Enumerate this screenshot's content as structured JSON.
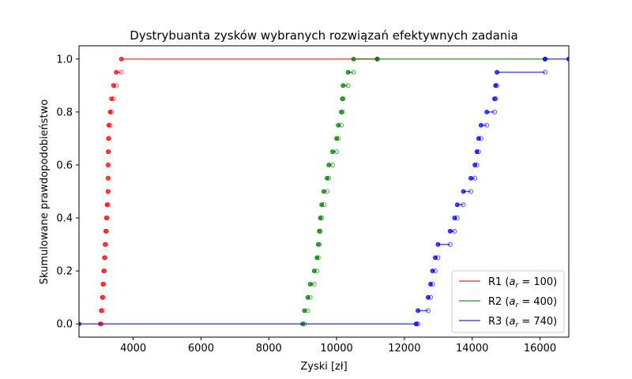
{
  "chart_data": {
    "type": "step",
    "title": "Dystrybuanta zysków wybranych rozwiązań efektywnych zadania",
    "xlabel": "Zyski [zł]",
    "ylabel": "Skumulowane prawdopodobieństwo",
    "xlim": [
      2400,
      16850
    ],
    "ylim": [
      -0.05,
      1.05
    ],
    "xticks": [
      4000,
      6000,
      8000,
      10000,
      12000,
      14000,
      16000
    ],
    "yticks": [
      0.0,
      0.2,
      0.4,
      0.6,
      0.8,
      1.0
    ],
    "xtick_labels": [
      "4000",
      "6000",
      "8000",
      "10000",
      "12000",
      "14000",
      "16000"
    ],
    "ytick_labels": [
      "0.0",
      "0.2",
      "0.4",
      "0.6",
      "0.8",
      "1.0"
    ],
    "legend_position": "lower-right",
    "grid": false,
    "series": [
      {
        "name_main": "R1 (",
        "name_math": "a",
        "name_sub": "r",
        "name_rest": " = 100)",
        "color": "#ff0000",
        "x": [
          3030,
          3060,
          3090,
          3110,
          3130,
          3150,
          3170,
          3190,
          3210,
          3230,
          3260,
          3260,
          3260,
          3260,
          3270,
          3280,
          3320,
          3360,
          3420,
          3500,
          3650,
          11200
        ],
        "y": [
          0.0,
          0.05,
          0.1,
          0.15,
          0.2,
          0.25,
          0.3,
          0.35,
          0.4,
          0.45,
          0.5,
          0.55,
          0.6,
          0.65,
          0.7,
          0.75,
          0.8,
          0.85,
          0.9,
          0.95,
          1.0,
          1.0
        ]
      },
      {
        "name_main": "R2 (",
        "name_math": "a",
        "name_sub": "r",
        "name_rest": " = 400)",
        "color": "#008000",
        "x": [
          9000,
          9050,
          9150,
          9220,
          9340,
          9420,
          9460,
          9490,
          9520,
          9560,
          9620,
          9720,
          9770,
          9880,
          10000,
          10050,
          10140,
          10170,
          10190,
          10340,
          10500,
          11200,
          16150
        ],
        "y": [
          0.0,
          0.05,
          0.1,
          0.15,
          0.2,
          0.25,
          0.3,
          0.35,
          0.4,
          0.45,
          0.5,
          0.55,
          0.6,
          0.65,
          0.7,
          0.75,
          0.8,
          0.85,
          0.9,
          0.95,
          1.0,
          1.0,
          1.0
        ]
      },
      {
        "name_main": "R3 (",
        "name_math": "a",
        "name_sub": "r",
        "name_rest": " = 740)",
        "color": "#0000ff",
        "x": [
          2400,
          12350,
          12400,
          12700,
          12770,
          12830,
          12910,
          12990,
          13350,
          13480,
          13560,
          13740,
          13960,
          14080,
          14140,
          14190,
          14260,
          14430,
          14660,
          14690,
          14730,
          16150,
          16850
        ],
        "y": [
          0.0,
          0.0,
          0.05,
          0.1,
          0.15,
          0.2,
          0.25,
          0.3,
          0.35,
          0.4,
          0.45,
          0.5,
          0.55,
          0.6,
          0.65,
          0.7,
          0.75,
          0.8,
          0.85,
          0.9,
          0.95,
          1.0,
          1.0
        ]
      }
    ]
  }
}
